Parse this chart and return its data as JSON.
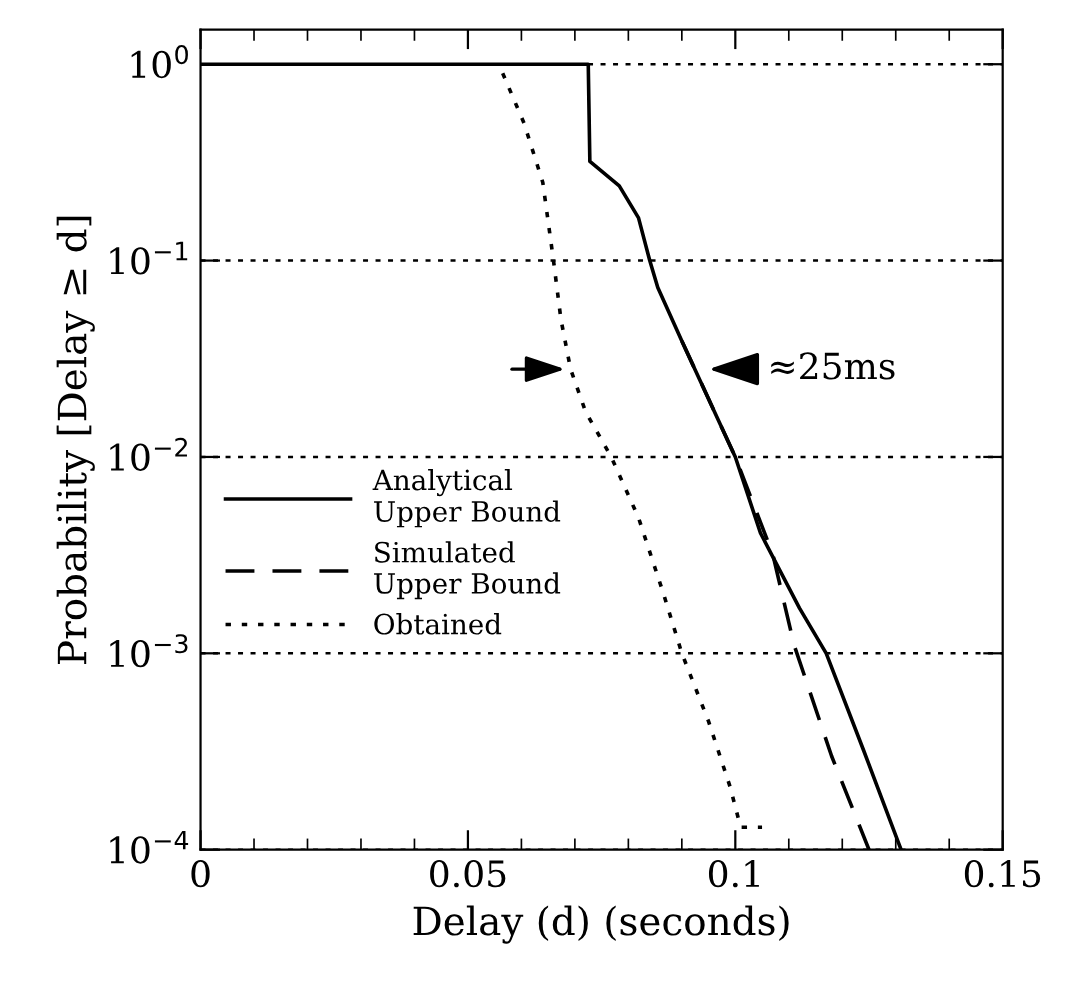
{
  "chart_data": {
    "type": "line",
    "xlabel": "Delay (d) (seconds)",
    "ylabel": "Probability [Delay ≥ d]",
    "log": "y",
    "xlim": [
      0,
      0.15
    ],
    "xticks": [
      0,
      0.05,
      0.1,
      0.15
    ],
    "ylim": [
      0.0001,
      1.5
    ],
    "yticks": [
      {
        "value": 1,
        "label": "10$^{0}$"
      },
      {
        "value": 0.1,
        "label": "10$^{−1}$"
      },
      {
        "value": 0.01,
        "label": "10$^{−2}$"
      },
      {
        "value": 0.001,
        "label": "10$^{−3}$"
      },
      {
        "value": 0.0001,
        "label": "10$^{−4}$"
      }
    ],
    "grid": "y",
    "legend": "left",
    "marker": "none",
    "series": [
      {
        "name": "Analytical\nUpper Bound",
        "color": "#000000",
        "line_style": "solid",
        "x": [
          0,
          0.0725,
          0.0728,
          0.0783,
          0.0819,
          0.084,
          0.0855,
          0.09,
          0.1,
          0.1047,
          0.112,
          0.117,
          0.124,
          0.131
        ],
        "values": [
          1,
          1,
          0.32,
          0.24,
          0.165,
          0.1,
          0.073,
          0.039,
          0.01,
          0.0041,
          0.0017,
          0.001,
          0.00032,
          0.0001
        ]
      },
      {
        "name": "Simulated\nUpper Bound",
        "color": "#000000",
        "line_style": "dashed",
        "x": [
          0.09,
          0.1,
          0.107,
          0.111,
          0.118,
          0.125
        ],
        "values": [
          0.039,
          0.01,
          0.0032,
          0.0011,
          0.0003,
          0.0001
        ]
      },
      {
        "name": "Obtained",
        "color": "#000000",
        "line_style": "dotted",
        "x": [
          0.0565,
          0.0605,
          0.064,
          0.066,
          0.0674,
          0.0692,
          0.072,
          0.0768,
          0.0819,
          0.0866,
          0.09,
          0.095,
          0.099,
          0.101,
          0.105
        ],
        "values": [
          0.9,
          0.5,
          0.25,
          0.1,
          0.05,
          0.028,
          0.017,
          0.01,
          0.0049,
          0.002,
          0.001,
          0.00045,
          0.00021,
          0.00013,
          0.00013
        ]
      }
    ],
    "annotations": [
      {
        "text": "≈25ms",
        "x": 0.094,
        "y": 0.028
      }
    ]
  }
}
